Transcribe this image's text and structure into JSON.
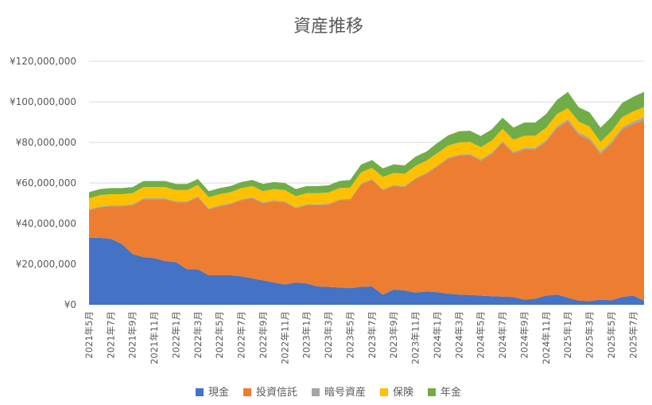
{
  "chart_data": {
    "type": "area",
    "stacked": true,
    "title": "資産推移",
    "xlabel": "",
    "ylabel": "",
    "ylim": [
      0,
      120000000
    ],
    "y_ticks": [
      "¥0",
      "¥20,000,000",
      "¥40,000,000",
      "¥60,000,000",
      "¥80,000,000",
      "¥100,000,000",
      "¥120,000,000"
    ],
    "grid": true,
    "legend_position": "bottom",
    "x_tick_labels": [
      "2021年5月",
      "2021年7月",
      "2021年9月",
      "2021年11月",
      "2022年1月",
      "2022年3月",
      "2022年5月",
      "2022年7月",
      "2022年9月",
      "2022年11月",
      "2023年1月",
      "2023年3月",
      "2023年5月",
      "2023年7月",
      "2023年9月",
      "2023年11月",
      "2024年1月",
      "2024年3月",
      "2024年5月",
      "2024年7月",
      "2024年9月",
      "2024年11月",
      "2025年1月",
      "2025年3月",
      "2025年5月",
      "2025年7月"
    ],
    "x": [
      "2021年5月",
      "2021年6月",
      "2021年7月",
      "2021年8月",
      "2021年9月",
      "2021年10月",
      "2021年11月",
      "2021年12月",
      "2022年1月",
      "2022年2月",
      "2022年3月",
      "2022年4月",
      "2022年5月",
      "2022年6月",
      "2022年7月",
      "2022年8月",
      "2022年9月",
      "2022年10月",
      "2022年11月",
      "2022年12月",
      "2023年1月",
      "2023年2月",
      "2023年3月",
      "2023年4月",
      "2023年5月",
      "2023年6月",
      "2023年7月",
      "2023年8月",
      "2023年9月",
      "2023年10月",
      "2023年11月",
      "2023年12月",
      "2024年1月",
      "2024年2月",
      "2024年3月",
      "2024年4月",
      "2024年5月",
      "2024年6月",
      "2024年7月",
      "2024年8月",
      "2024年9月",
      "2024年10月",
      "2024年11月",
      "2024年12月",
      "2025年1月",
      "2025年2月",
      "2025年3月",
      "2025年4月",
      "2025年5月",
      "2025年6月",
      "2025年7月",
      "2025年8月"
    ],
    "series": [
      {
        "name": "現金",
        "color": "#4472c4",
        "values": [
          33000000,
          33000000,
          32500000,
          30000000,
          25000000,
          23500000,
          23000000,
          21500000,
          21000000,
          17500000,
          17500000,
          14500000,
          14500000,
          14500000,
          14000000,
          13000000,
          12000000,
          11000000,
          10000000,
          11000000,
          10500000,
          9000000,
          8800000,
          8500000,
          8200000,
          8800000,
          9000000,
          5000000,
          7500000,
          7000000,
          6000000,
          6500000,
          6200000,
          5500000,
          5000000,
          4800000,
          4500000,
          4200000,
          4000000,
          3800000,
          2500000,
          3000000,
          4500000,
          5000000,
          3500000,
          2000000,
          1800000,
          2500000,
          2200000,
          3800000,
          4500000,
          2000000
        ]
      },
      {
        "name": "投資信託",
        "color": "#ed7d31",
        "values": [
          13500000,
          15000000,
          16000000,
          18500000,
          24000000,
          28500000,
          29000000,
          30500000,
          29500000,
          33000000,
          35500000,
          32500000,
          34000000,
          35000000,
          37500000,
          39500000,
          38000000,
          40000000,
          40500000,
          36500000,
          38500000,
          40000000,
          40500000,
          43000000,
          43500000,
          50500000,
          52500000,
          51500000,
          51000000,
          51000000,
          56000000,
          58000000,
          62000000,
          66500000,
          68500000,
          69000000,
          66500000,
          70000000,
          76000000,
          70800000,
          74000000,
          73500000,
          75800000,
          82000000,
          86800000,
          81700000,
          79400000,
          71700000,
          77200000,
          82500000,
          84500000,
          89000000
        ]
      },
      {
        "name": "暗号資産",
        "color": "#a5a5a5",
        "values": [
          500000,
          500000,
          500000,
          500000,
          500000,
          500000,
          500000,
          500000,
          500000,
          500000,
          500000,
          500000,
          500000,
          500000,
          500000,
          500000,
          500000,
          500000,
          500000,
          500000,
          500000,
          500000,
          500000,
          500000,
          500000,
          500000,
          500000,
          500000,
          500000,
          500000,
          500000,
          500000,
          500000,
          500000,
          500000,
          500000,
          700000,
          700000,
          700000,
          700000,
          800000,
          800000,
          900000,
          1000000,
          1100000,
          1100000,
          1100000,
          1100000,
          1100000,
          1200000,
          1300000,
          1400000
        ]
      },
      {
        "name": "保険",
        "color": "#ffc000",
        "values": [
          5500000,
          5500000,
          5500000,
          5500000,
          5500000,
          5500000,
          5500000,
          5500000,
          5500000,
          5500000,
          5500000,
          5500000,
          5500000,
          5500000,
          5500000,
          5500000,
          5500000,
          5500000,
          5500000,
          5500000,
          5500000,
          5500000,
          5500000,
          5500000,
          5500000,
          5500000,
          5500000,
          6000000,
          6000000,
          6000000,
          6000000,
          6000000,
          6000000,
          6000000,
          6000000,
          6000000,
          6000000,
          6000000,
          6000000,
          6000000,
          6000000,
          6000000,
          6000000,
          6000000,
          5500000,
          5500000,
          5500000,
          5000000,
          5000000,
          5000000,
          5000000,
          5000000
        ]
      },
      {
        "name": "年金",
        "color": "#70ad47",
        "values": [
          3000000,
          3000000,
          3000000,
          3000000,
          3000000,
          3000000,
          3000000,
          3000000,
          3000000,
          3000000,
          3000000,
          3000000,
          3000000,
          3000000,
          3000000,
          3000000,
          3500000,
          3500000,
          3500000,
          3500000,
          3500000,
          3500000,
          3500000,
          3500000,
          3800000,
          3800000,
          3800000,
          4200000,
          4200000,
          4200000,
          4500000,
          4500000,
          5000000,
          5000000,
          5500000,
          5500000,
          5500000,
          5500000,
          5500000,
          6000000,
          6500000,
          6500000,
          6800000,
          7000000,
          8000000,
          7000000,
          7000000,
          7000000,
          7000000,
          7000000,
          7200000,
          7500000
        ]
      }
    ]
  }
}
